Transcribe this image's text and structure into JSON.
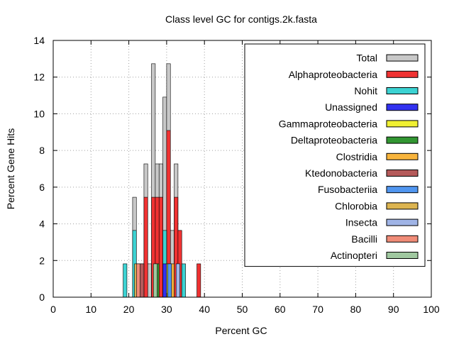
{
  "chart_data": {
    "type": "bar",
    "title": "Class level GC for contigs.2k.fasta",
    "xlabel": "Percent GC",
    "ylabel": "Percent Gene Hits",
    "xlim": [
      0,
      100
    ],
    "ylim": [
      0,
      14
    ],
    "x_ticks": [
      "0",
      "10",
      "20",
      "30",
      "40",
      "50",
      "60",
      "70",
      "80",
      "90",
      "100"
    ],
    "y_ticks": [
      "0",
      "2",
      "4",
      "6",
      "8",
      "10",
      "12",
      "14"
    ],
    "grid": true,
    "legend_position": "top-right",
    "bin_width": 1,
    "series": [
      {
        "name": "Total",
        "color": "#c8c8c8",
        "bins": [
          [
            21,
            5.45
          ],
          [
            22,
            1.82
          ],
          [
            23,
            1.82
          ],
          [
            24,
            7.27
          ],
          [
            25,
            1.82
          ],
          [
            26,
            12.73
          ],
          [
            27,
            7.27
          ],
          [
            28,
            7.27
          ],
          [
            29,
            10.91
          ],
          [
            30,
            12.73
          ],
          [
            31,
            3.64
          ],
          [
            32,
            7.27
          ],
          [
            33,
            3.64
          ]
        ]
      },
      {
        "name": "Alphaproteobacteria",
        "color": "#f03232",
        "bins": [
          [
            24,
            5.45
          ],
          [
            26,
            5.45
          ],
          [
            27,
            5.45
          ],
          [
            28,
            5.45
          ],
          [
            30,
            9.09
          ],
          [
            32,
            5.45
          ],
          [
            33,
            3.64
          ],
          [
            38,
            1.82
          ]
        ]
      },
      {
        "name": "Nohit",
        "color": "#3cd2d2",
        "bins": [
          [
            18.5,
            1.82
          ],
          [
            21,
            3.64
          ],
          [
            29,
            3.64
          ],
          [
            34,
            1.82
          ]
        ]
      },
      {
        "name": "Unassigned",
        "color": "#3232f0",
        "bins": [
          [
            29,
            1.82
          ]
        ]
      },
      {
        "name": "Gammaproteobacteria",
        "color": "#f0f032",
        "bins": [
          [
            30,
            1.82
          ]
        ]
      },
      {
        "name": "Deltaproteobacteria",
        "color": "#329632",
        "bins": [
          [
            27,
            1.82
          ]
        ]
      },
      {
        "name": "Clostridia",
        "color": "#f8b43c",
        "bins": [
          [
            31,
            1.82
          ]
        ]
      },
      {
        "name": "Ktedonobacteria",
        "color": "#b45a5a",
        "bins": [
          [
            23,
            1.82
          ]
        ]
      },
      {
        "name": "Fusobacteriia",
        "color": "#5096f0",
        "bins": [
          [
            30.3,
            1.82
          ]
        ]
      },
      {
        "name": "Chlorobia",
        "color": "#dcb450",
        "bins": [
          [
            21.5,
            1.82
          ]
        ]
      },
      {
        "name": "Insecta",
        "color": "#a0b4e6",
        "bins": [
          [
            32.5,
            1.82
          ]
        ]
      },
      {
        "name": "Bacilli",
        "color": "#f08c78",
        "bins": [
          [
            22,
            1.82
          ]
        ]
      },
      {
        "name": "Actinopteri",
        "color": "#a0c8a0",
        "bins": [
          [
            26.5,
            1.82
          ]
        ]
      }
    ]
  }
}
